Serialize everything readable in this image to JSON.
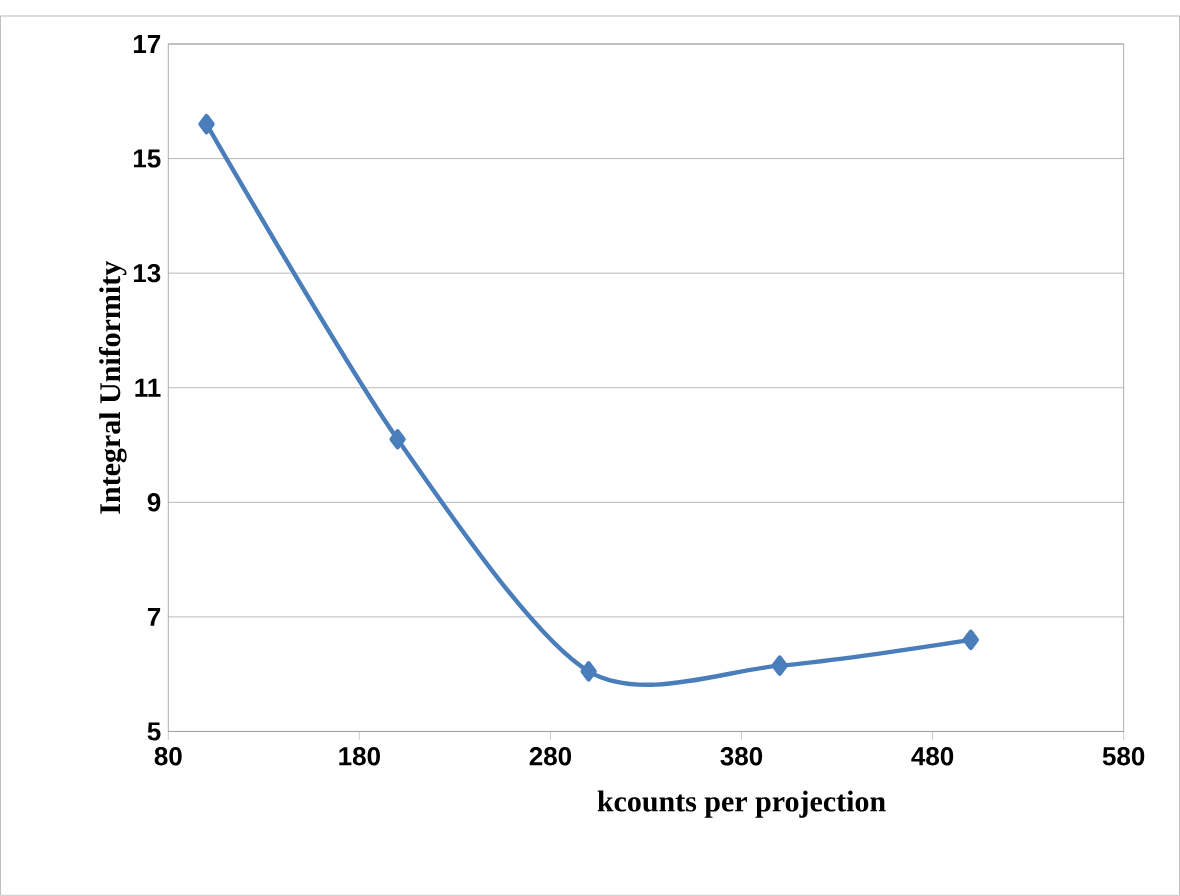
{
  "chart_data": {
    "type": "line",
    "xlabel": "kcounts per projection",
    "ylabel": "Integral Uniformity",
    "x": [
      100,
      200,
      300,
      400,
      500
    ],
    "series": [
      {
        "color": "#4a7ebb",
        "values": [
          15.6,
          10.1,
          6.05,
          6.15,
          6.6
        ]
      }
    ],
    "xlim": [
      80,
      580
    ],
    "xticks": [
      80,
      180,
      280,
      380,
      480,
      580
    ],
    "ylim": [
      5,
      17
    ],
    "yticks": [
      5,
      7,
      9,
      11,
      13,
      15,
      17
    ],
    "grid": "y",
    "marker": "diamond",
    "line_style": "solid"
  }
}
